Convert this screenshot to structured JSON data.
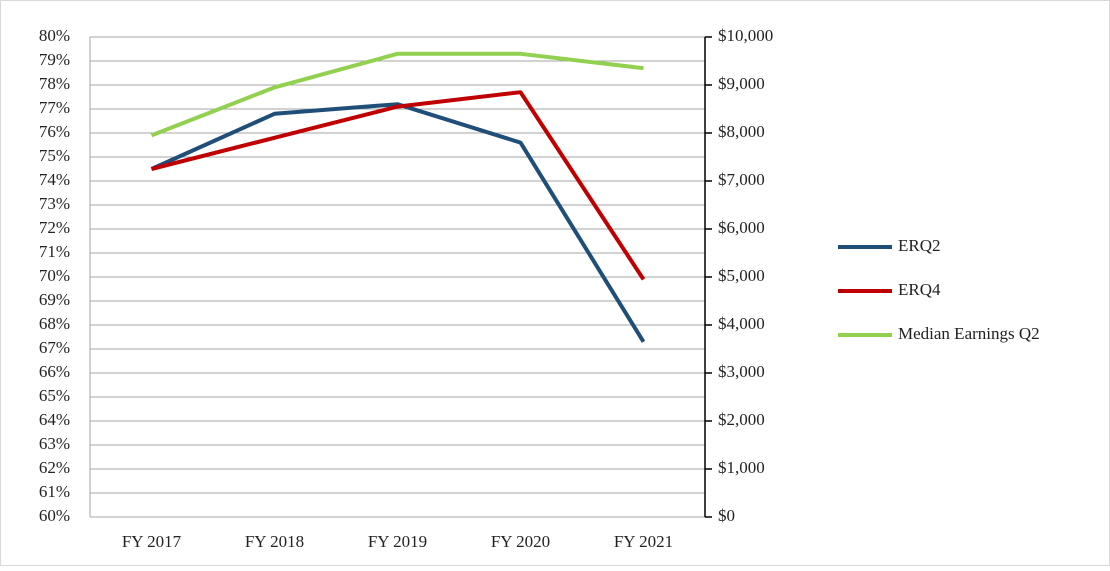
{
  "chart_data": {
    "type": "line",
    "categories": [
      "FY 2017",
      "FY 2018",
      "FY 2019",
      "FY 2020",
      "FY 2021"
    ],
    "series": [
      {
        "name": "ERQ2",
        "color": "#1f4e79",
        "values": [
          74.5,
          76.8,
          77.2,
          75.6,
          67.3
        ]
      },
      {
        "name": "ERQ4",
        "color": "#c00000",
        "values": [
          74.5,
          75.8,
          77.1,
          77.7,
          69.9
        ]
      },
      {
        "name": "Median Earnings Q2",
        "color": "#92d050",
        "axis": "y2",
        "values": [
          7950,
          8950,
          9650,
          9650,
          9350
        ]
      }
    ],
    "ylim": [
      60,
      80
    ],
    "yticks": [
      {
        "value": 60,
        "label": "60%"
      },
      {
        "value": 61,
        "label": "61%"
      },
      {
        "value": 62,
        "label": "62%"
      },
      {
        "value": 63,
        "label": "63%"
      },
      {
        "value": 64,
        "label": "64%"
      },
      {
        "value": 65,
        "label": "65%"
      },
      {
        "value": 66,
        "label": "66%"
      },
      {
        "value": 67,
        "label": "67%"
      },
      {
        "value": 68,
        "label": "68%"
      },
      {
        "value": 69,
        "label": "69%"
      },
      {
        "value": 70,
        "label": "70%"
      },
      {
        "value": 71,
        "label": "71%"
      },
      {
        "value": 72,
        "label": "72%"
      },
      {
        "value": 73,
        "label": "73%"
      },
      {
        "value": 74,
        "label": "74%"
      },
      {
        "value": 75,
        "label": "75%"
      },
      {
        "value": 76,
        "label": "76%"
      },
      {
        "value": 77,
        "label": "77%"
      },
      {
        "value": 78,
        "label": "78%"
      },
      {
        "value": 79,
        "label": "79%"
      },
      {
        "value": 80,
        "label": "80%"
      }
    ],
    "y2lim": [
      0,
      10000
    ],
    "y2ticks": [
      {
        "value": 0,
        "label": "$0"
      },
      {
        "value": 1000,
        "label": "$1,000"
      },
      {
        "value": 2000,
        "label": "$2,000"
      },
      {
        "value": 3000,
        "label": "$3,000"
      },
      {
        "value": 4000,
        "label": "$4,000"
      },
      {
        "value": 5000,
        "label": "$5,000"
      },
      {
        "value": 6000,
        "label": "$6,000"
      },
      {
        "value": 7000,
        "label": "$7,000"
      },
      {
        "value": 8000,
        "label": "$8,000"
      },
      {
        "value": 9000,
        "label": "$9,000"
      },
      {
        "value": 10000,
        "label": "$10,000"
      }
    ],
    "grid": true,
    "legend": "right"
  }
}
